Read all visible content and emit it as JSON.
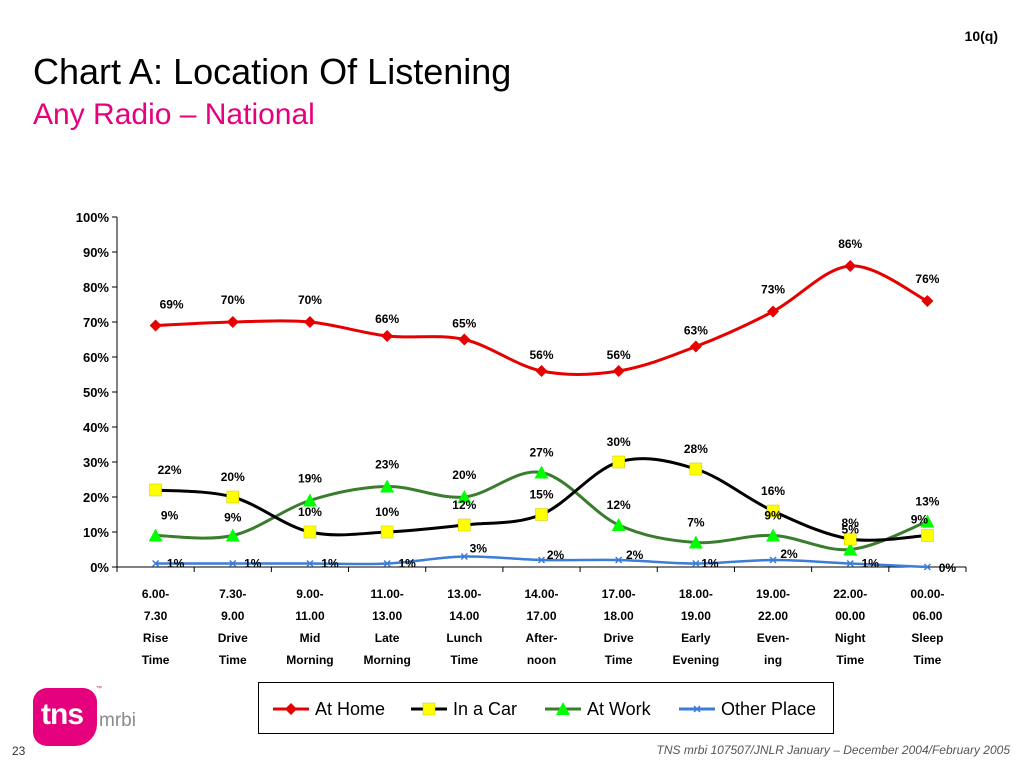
{
  "slide_code": "10(q)",
  "title": "Chart A:  Location Of Listening",
  "subtitle": "Any Radio – National",
  "logo": {
    "text": "tns",
    "tm": "™",
    "sub": "mrbi"
  },
  "page_number": "23",
  "footer": "TNS mrbi 107507/JNLR January – December 2004/February 2005",
  "colors": {
    "title": "#000000",
    "subtitle": "#e5007e"
  },
  "chart_data": {
    "type": "line",
    "categories": [
      [
        "6.00-",
        "7.30",
        "Rise",
        "Time"
      ],
      [
        "7.30-",
        "9.00",
        "Drive",
        "Time"
      ],
      [
        "9.00-",
        "11.00",
        "Mid",
        "Morning"
      ],
      [
        "11.00-",
        "13.00",
        "Late",
        "Morning"
      ],
      [
        "13.00-",
        "14.00",
        "Lunch",
        "Time"
      ],
      [
        "14.00-",
        "17.00",
        "After-",
        "noon"
      ],
      [
        "17.00-",
        "18.00",
        "Drive",
        "Time"
      ],
      [
        "18.00-",
        "19.00",
        "Early",
        "Evening"
      ],
      [
        "19.00-",
        "22.00",
        "Even-",
        "ing"
      ],
      [
        "22.00-",
        "00.00",
        "Night",
        "Time"
      ],
      [
        "00.00-",
        "06.00",
        "Sleep",
        "Time"
      ]
    ],
    "y_ticks": [
      "0%",
      "10%",
      "20%",
      "30%",
      "40%",
      "50%",
      "60%",
      "70%",
      "80%",
      "90%",
      "100%"
    ],
    "ylim": [
      0,
      100
    ],
    "grid": false,
    "legend_position": "bottom",
    "series": [
      {
        "name": "At Home",
        "color": "#e60000",
        "marker": "diamond",
        "values": [
          69,
          70,
          70,
          66,
          65,
          56,
          56,
          63,
          73,
          86,
          76
        ]
      },
      {
        "name": "In a Car",
        "color": "#000000",
        "marker": "square",
        "marker_color": "#ffff00",
        "values": [
          22,
          20,
          10,
          10,
          12,
          15,
          30,
          28,
          16,
          8,
          9
        ]
      },
      {
        "name": "At Work",
        "color": "#3a7d2e",
        "marker": "triangle",
        "marker_color": "#00ff00",
        "values": [
          9,
          9,
          19,
          23,
          20,
          27,
          12,
          7,
          9,
          5,
          13
        ]
      },
      {
        "name": "Other Place",
        "color": "#3b7dd8",
        "marker": "x",
        "values": [
          1,
          1,
          1,
          1,
          3,
          2,
          2,
          1,
          2,
          1,
          0
        ]
      }
    ],
    "data_labels": [
      [
        "69%",
        "70%",
        "70%",
        "66%",
        "65%",
        "56%",
        "56%",
        "63%",
        "73%",
        "86%",
        "76%"
      ],
      [
        "22%",
        "20%",
        "10%",
        "10%",
        "12%",
        "15%",
        "30%",
        "28%",
        "16%",
        "8%",
        "9%"
      ],
      [
        "9%",
        "9%",
        "19%",
        "23%",
        "20%",
        "27%",
        "12%",
        "7%",
        "9%",
        "5%",
        "13%"
      ],
      [
        "1%",
        "1%",
        "1%",
        "1%",
        "3%",
        "2%",
        "2%",
        "1%",
        "2%",
        "1%",
        "0%"
      ]
    ]
  }
}
